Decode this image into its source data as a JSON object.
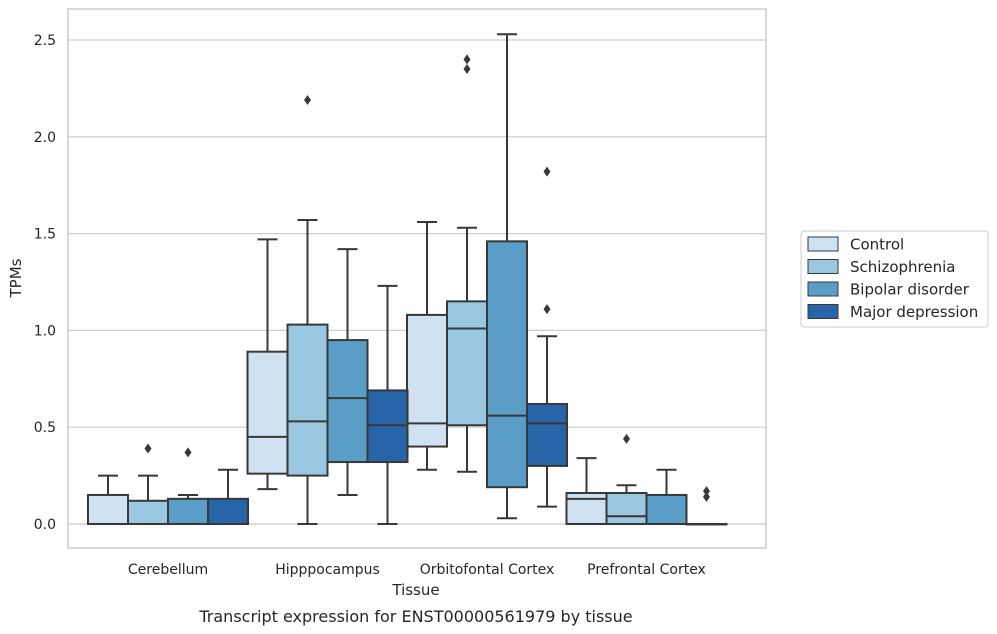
{
  "chart_data": {
    "type": "box",
    "xlabel": "Tissue",
    "ylabel": "TPMs",
    "caption": "Transcript expression for ENST00000561979 by tissue",
    "ylim": [
      -0.12,
      2.66
    ],
    "yticks": [
      0.0,
      0.5,
      1.0,
      1.5,
      2.0,
      2.5
    ],
    "ytick_labels": [
      "0.0",
      "0.5",
      "1.0",
      "1.5",
      "2.0",
      "2.5"
    ],
    "grid": "horizontal",
    "legend_position": "right",
    "categories": [
      "Cerebellum",
      "Hipppocampus",
      "Orbitofontal Cortex",
      "Prefrontal Cortex"
    ],
    "series": [
      {
        "name": "Control",
        "color": "#d0e1f2",
        "boxes": [
          {
            "whislo": 0.0,
            "q1": 0.0,
            "med": 0.0,
            "q3": 0.15,
            "whishi": 0.25,
            "fliers": []
          },
          {
            "whislo": 0.18,
            "q1": 0.26,
            "med": 0.45,
            "q3": 0.89,
            "whishi": 1.47,
            "fliers": []
          },
          {
            "whislo": 0.28,
            "q1": 0.4,
            "med": 0.52,
            "q3": 1.08,
            "whishi": 1.56,
            "fliers": []
          },
          {
            "whislo": 0.0,
            "q1": 0.0,
            "med": 0.13,
            "q3": 0.16,
            "whishi": 0.34,
            "fliers": []
          }
        ]
      },
      {
        "name": "Schizophrenia",
        "color": "#9ac8e0",
        "boxes": [
          {
            "whislo": 0.0,
            "q1": 0.0,
            "med": 0.0,
            "q3": 0.12,
            "whishi": 0.25,
            "fliers": [
              0.39
            ]
          },
          {
            "whislo": 0.0,
            "q1": 0.25,
            "med": 0.53,
            "q3": 1.03,
            "whishi": 1.57,
            "fliers": [
              2.19
            ]
          },
          {
            "whislo": 0.27,
            "q1": 0.51,
            "med": 1.01,
            "q3": 1.15,
            "whishi": 1.53,
            "fliers": [
              2.35,
              2.4
            ]
          },
          {
            "whislo": 0.0,
            "q1": 0.0,
            "med": 0.04,
            "q3": 0.16,
            "whishi": 0.2,
            "fliers": [
              0.44
            ]
          }
        ]
      },
      {
        "name": "Bipolar disorder",
        "color": "#5a9ec8",
        "boxes": [
          {
            "whislo": 0.0,
            "q1": 0.0,
            "med": 0.0,
            "q3": 0.13,
            "whishi": 0.15,
            "fliers": [
              0.37
            ]
          },
          {
            "whislo": 0.15,
            "q1": 0.32,
            "med": 0.65,
            "q3": 0.95,
            "whishi": 1.42,
            "fliers": []
          },
          {
            "whislo": 0.03,
            "q1": 0.19,
            "med": 0.56,
            "q3": 1.46,
            "whishi": 2.53,
            "fliers": []
          },
          {
            "whislo": 0.0,
            "q1": 0.0,
            "med": 0.0,
            "q3": 0.15,
            "whishi": 0.28,
            "fliers": []
          }
        ]
      },
      {
        "name": "Major depression",
        "color": "#2765a8",
        "boxes": [
          {
            "whislo": 0.0,
            "q1": 0.0,
            "med": 0.0,
            "q3": 0.13,
            "whishi": 0.28,
            "fliers": []
          },
          {
            "whislo": 0.0,
            "q1": 0.32,
            "med": 0.51,
            "q3": 0.69,
            "whishi": 1.23,
            "fliers": []
          },
          {
            "whislo": 0.09,
            "q1": 0.3,
            "med": 0.52,
            "q3": 0.62,
            "whishi": 0.97,
            "fliers": [
              1.11,
              1.82
            ]
          },
          {
            "whislo": 0.0,
            "q1": 0.0,
            "med": 0.0,
            "q3": 0.0,
            "whishi": 0.0,
            "fliers": [
              0.14,
              0.17
            ]
          }
        ]
      }
    ]
  }
}
